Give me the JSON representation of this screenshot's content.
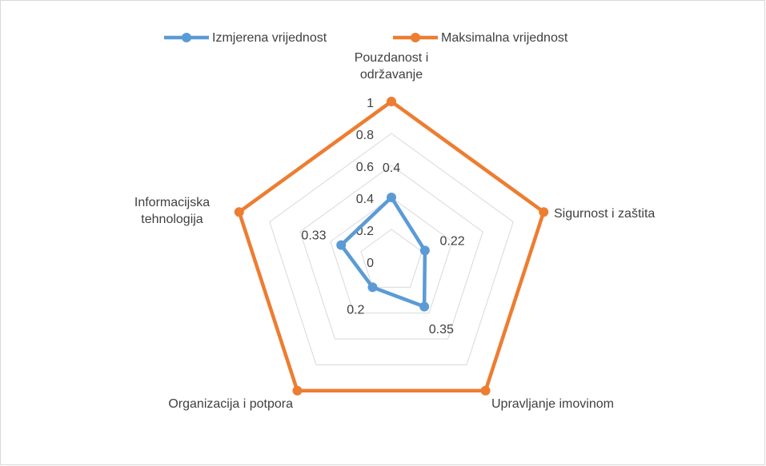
{
  "chart_data": {
    "type": "radar",
    "categories": [
      "Pouzdanost i održavanje",
      "Sigurnost i zaštita",
      "Upravljanje imovinom",
      "Organizacija i potpora",
      "Informacijska tehnologija"
    ],
    "series": [
      {
        "name": "Izmjerena vrijednost",
        "color": "#5b9bd5",
        "values": [
          0.4,
          0.22,
          0.35,
          0.2,
          0.33
        ]
      },
      {
        "name": "Maksimalna vrijednost",
        "color": "#ed7d31",
        "values": [
          1,
          1,
          1,
          1,
          1
        ]
      }
    ],
    "ylim": [
      0,
      1
    ],
    "yticks": [
      0,
      0.2,
      0.4,
      0.6,
      0.8,
      1
    ],
    "grid": true,
    "legend": "top"
  }
}
